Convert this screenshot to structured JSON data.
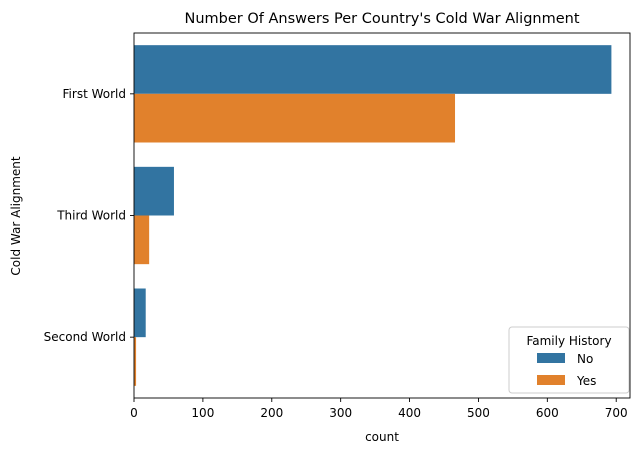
{
  "chart_data": {
    "type": "bar",
    "orientation": "horizontal",
    "title": "Number Of Answers Per Country's Cold War Alignment",
    "xlabel": "count",
    "ylabel": "Cold War Alignment",
    "categories": [
      "First World",
      "Third World",
      "Second World"
    ],
    "series": [
      {
        "name": "No",
        "color": "#3274a1",
        "values": [
          693,
          58,
          17
        ]
      },
      {
        "name": "Yes",
        "color": "#e1812c",
        "values": [
          466,
          22,
          3
        ]
      }
    ],
    "xlim": [
      0,
      720
    ],
    "xticks": [
      0,
      100,
      200,
      300,
      400,
      500,
      600,
      700
    ],
    "grid": false,
    "legend": {
      "title": "Family History",
      "placement": "lower-right"
    }
  }
}
